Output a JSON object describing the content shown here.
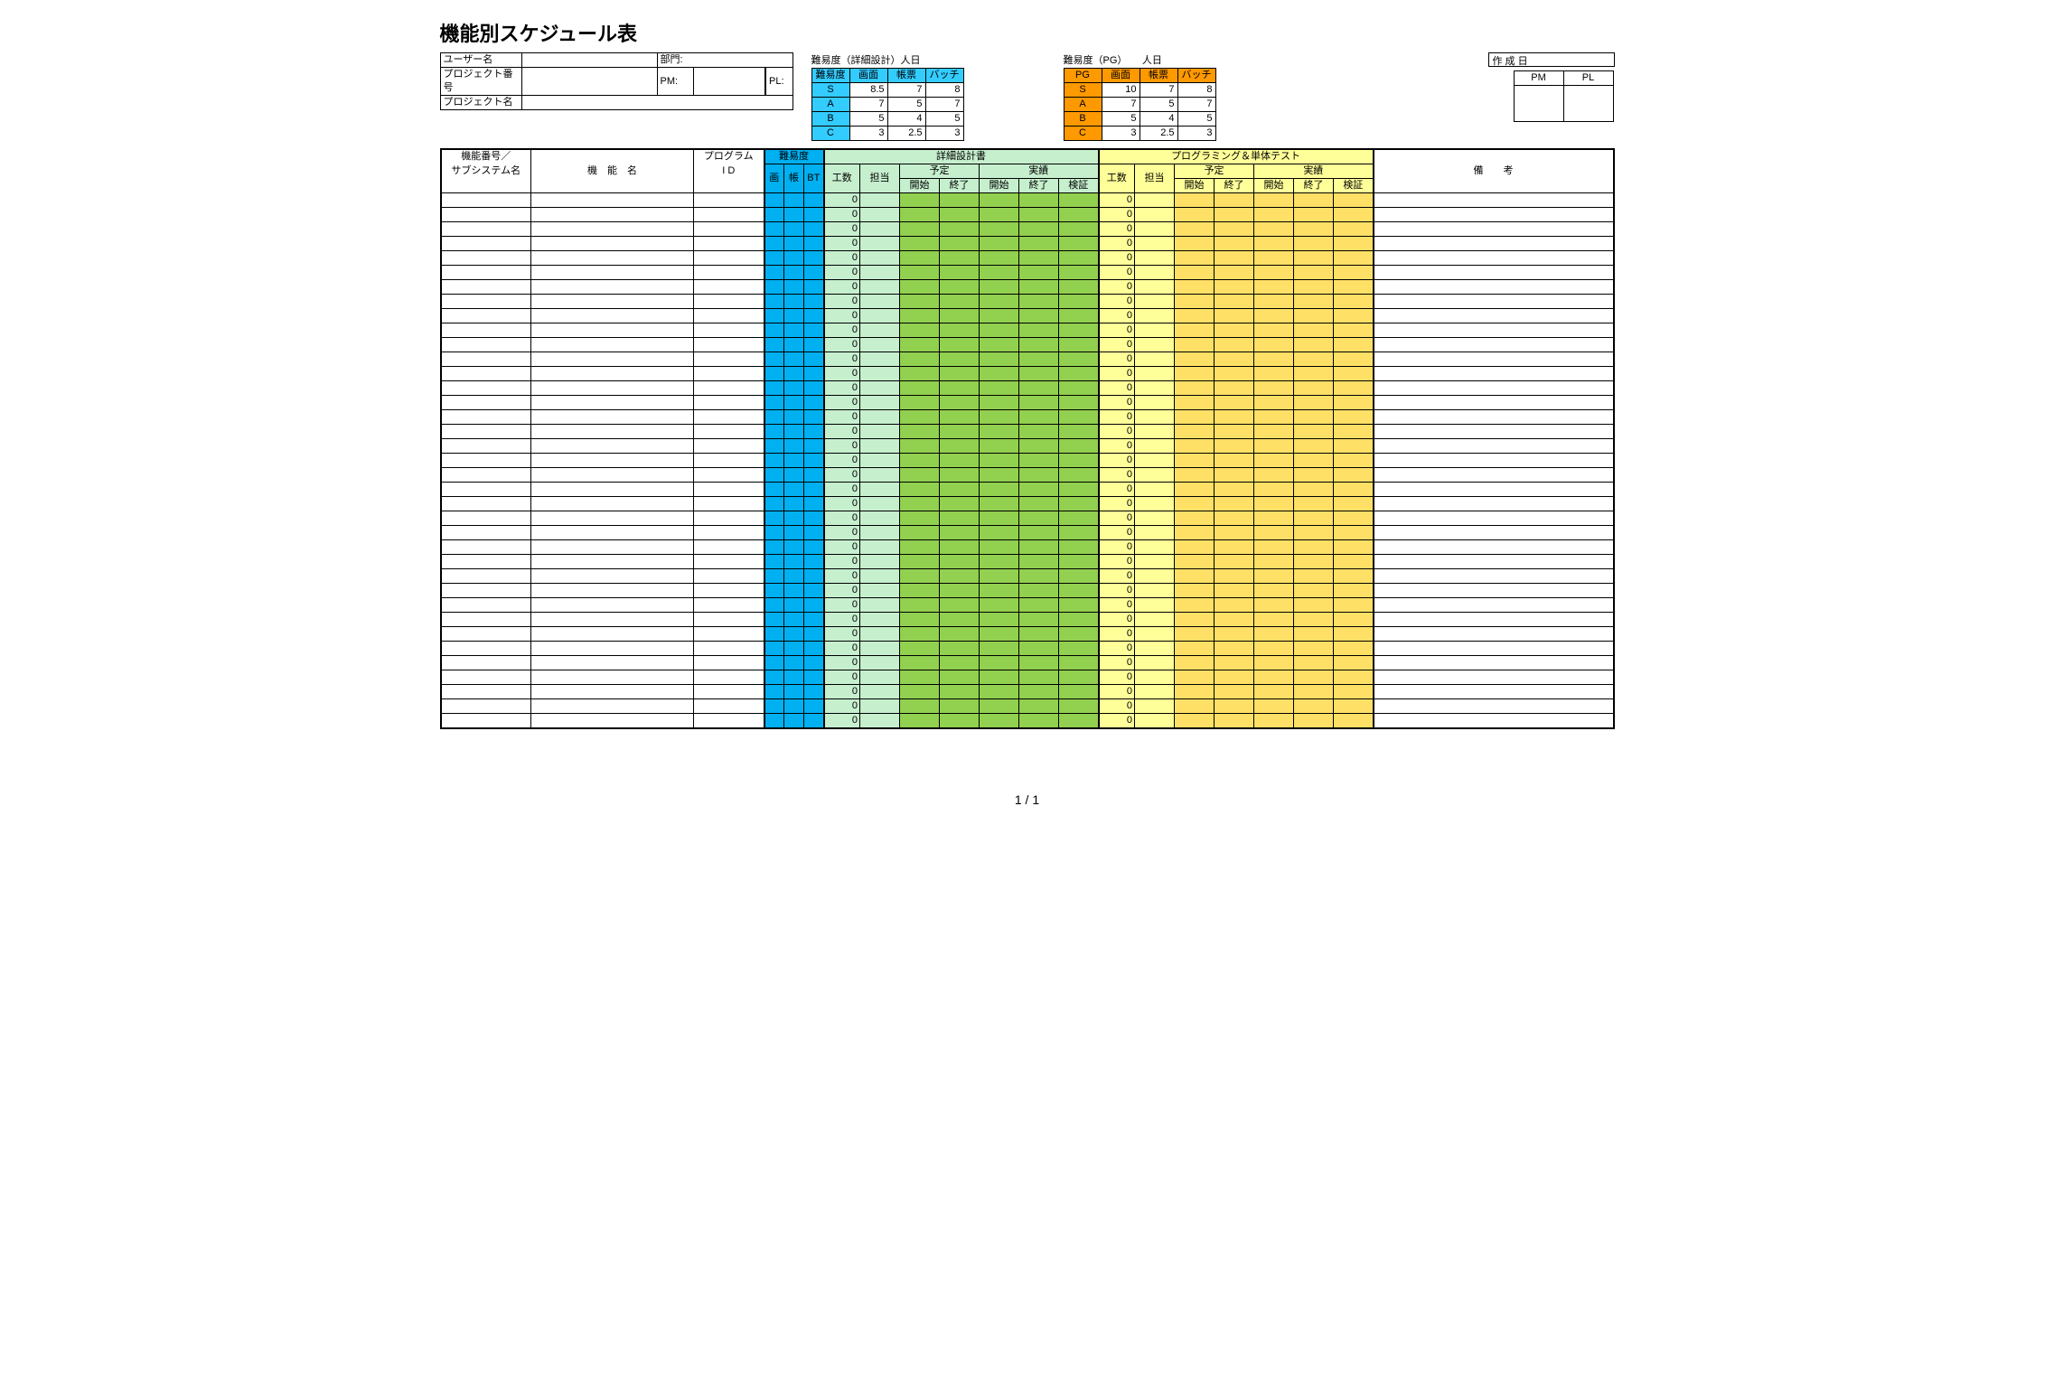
{
  "title": "機能別スケジュール表",
  "info": {
    "user_label": "ユーザー名",
    "dept_label": "部門:",
    "projno_label": "プロジェクト番号",
    "pm_label": "PM:",
    "pl_label": "PL:",
    "projname_label": "プロジェクト名"
  },
  "diff1": {
    "title": "難易度（詳細設計）人日",
    "headers": [
      "難易度",
      "画面",
      "帳票",
      "バッチ"
    ],
    "rows": [
      [
        "S",
        "8.5",
        "7",
        "8"
      ],
      [
        "A",
        "7",
        "5",
        "7"
      ],
      [
        "B",
        "5",
        "4",
        "5"
      ],
      [
        "C",
        "3",
        "2.5",
        "3"
      ]
    ],
    "header_bg": "#33ccff",
    "label_bg": "#33ccff"
  },
  "diff2": {
    "title": "難易度（PG）　　人日",
    "headers": [
      "PG",
      "画面",
      "帳票",
      "バッチ"
    ],
    "rows": [
      [
        "S",
        "10",
        "7",
        "8"
      ],
      [
        "A",
        "7",
        "5",
        "7"
      ],
      [
        "B",
        "5",
        "4",
        "5"
      ],
      [
        "C",
        "3",
        "2.5",
        "3"
      ]
    ],
    "header_bg": "#ff9900",
    "label_bg": "#ff9900"
  },
  "meta": {
    "created_label": "作 成 日",
    "pm": "PM",
    "pl": "PL"
  },
  "grid": {
    "h": {
      "funcno": "機能番号／",
      "subsys": "サブシステム名",
      "funcname": "機　能　名",
      "progid1": "プログラム",
      "progid2": " I D",
      "diff": "難易度",
      "diff_sub": [
        "画",
        "帳",
        "BT"
      ],
      "dd": "詳細設計書",
      "pg": "プログラミング＆単体テスト",
      "kosu": "工数",
      "tanto": "担当",
      "yotei": "予定",
      "jisseki": "実績",
      "kaishi": "開始",
      "shuryo": "終了",
      "kensho": "検証",
      "biko": "備　　考"
    },
    "row_count": 37,
    "kosu_value": "0",
    "colors": {
      "cyan": "#00b0f0",
      "lgreen": "#c6efce",
      "green": "#92d050",
      "lyellow": "#ffff99",
      "yellow": "#ffe066"
    }
  },
  "footer": "1 / 1"
}
